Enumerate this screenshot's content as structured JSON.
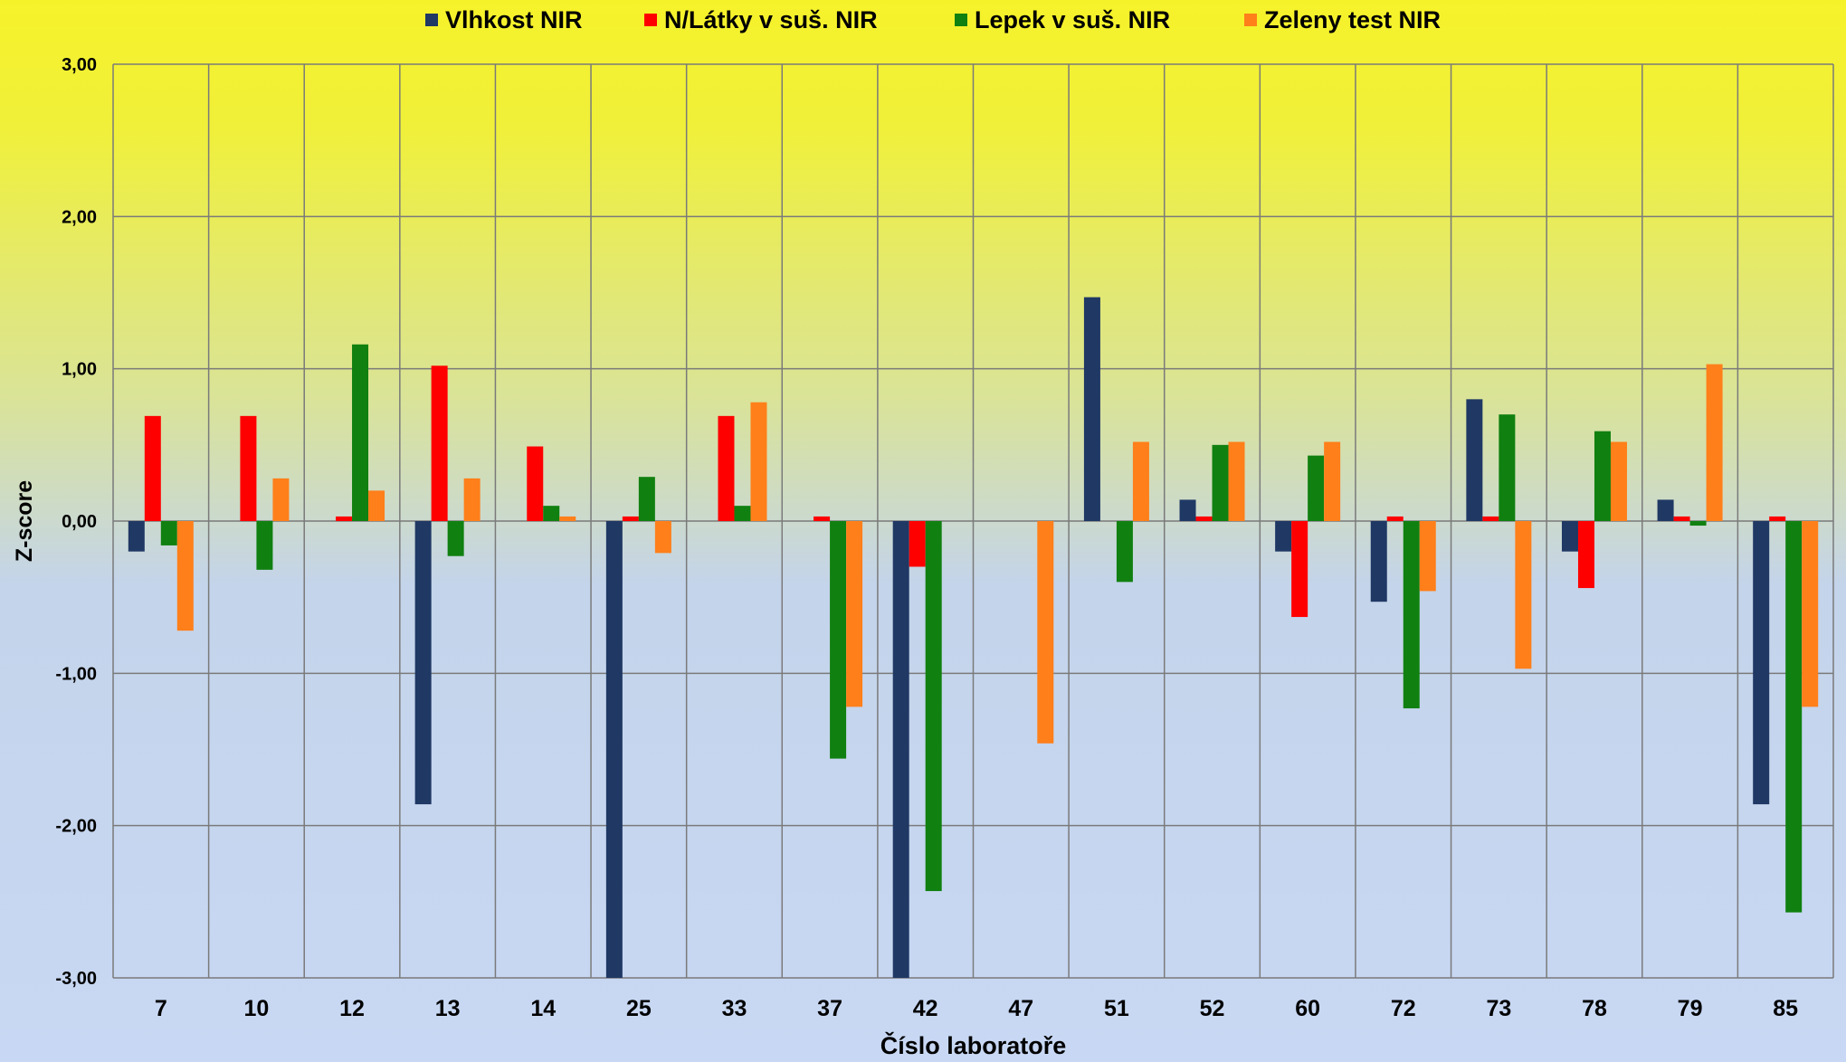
{
  "chart_data": {
    "type": "bar",
    "xlabel": "Číslo laboratoře",
    "ylabel": "Z-score",
    "ylim": [
      -3,
      3
    ],
    "yticks": [
      3,
      2,
      1,
      0,
      -1,
      -2,
      -3
    ],
    "ytick_labels": [
      "3,00",
      "2,00",
      "1,00",
      "0,00",
      "-1,00",
      "-2,00",
      "-3,00"
    ],
    "grid": true,
    "legend_position": "top",
    "categories": [
      "7",
      "10",
      "12",
      "13",
      "14",
      "25",
      "33",
      "37",
      "42",
      "47",
      "51",
      "52",
      "60",
      "72",
      "73",
      "78",
      "79",
      "85"
    ],
    "series": [
      {
        "name": "Vlhkost NIR",
        "color": "#1f3864",
        "values": [
          -0.2,
          null,
          null,
          -1.86,
          null,
          -3.0,
          null,
          null,
          -3.0,
          null,
          1.47,
          0.14,
          -0.2,
          -0.53,
          0.8,
          -0.2,
          0.14,
          -1.86
        ]
      },
      {
        "name": "N/Látky v suš. NIR",
        "color": "#ff0000",
        "values": [
          0.69,
          0.69,
          0.03,
          1.02,
          0.49,
          0.03,
          0.69,
          0.03,
          -0.3,
          null,
          null,
          0.03,
          -0.63,
          0.03,
          0.03,
          -0.44,
          0.03,
          0.03
        ]
      },
      {
        "name": "Lepek v suš. NIR",
        "color": "#108010",
        "values": [
          -0.16,
          -0.32,
          1.16,
          -0.23,
          0.1,
          0.29,
          0.1,
          -1.56,
          -2.43,
          null,
          -0.4,
          0.5,
          0.43,
          -1.23,
          0.7,
          0.59,
          -0.03,
          -2.57
        ]
      },
      {
        "name": "Zeleny test NIR",
        "color": "#ff7f1a",
        "values": [
          -0.72,
          0.28,
          0.2,
          0.28,
          0.03,
          -0.21,
          0.78,
          -1.22,
          null,
          -1.46,
          0.52,
          0.52,
          0.52,
          -0.46,
          -0.97,
          0.52,
          1.03,
          -1.22
        ]
      }
    ]
  }
}
